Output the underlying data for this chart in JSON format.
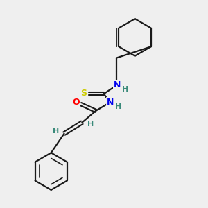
{
  "background_color": "#efefef",
  "bond_color": "#1a1a1a",
  "atom_colors": {
    "N": "#0000ee",
    "O": "#ff0000",
    "S": "#cccc00",
    "H": "#3a8a7a",
    "C": "#1a1a1a"
  },
  "figsize": [
    3.0,
    3.0
  ],
  "dpi": 100,
  "xlim": [
    0,
    300
  ],
  "ylim": [
    0,
    300
  ]
}
